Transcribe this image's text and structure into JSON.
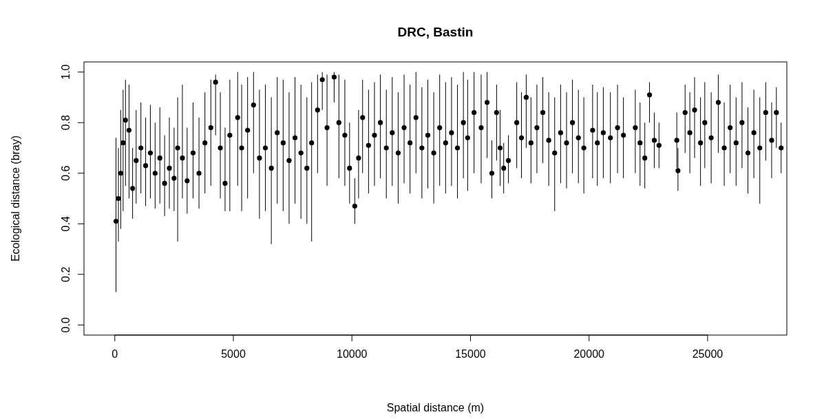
{
  "chart_data": {
    "type": "scatter",
    "title": "DRC, Bastin",
    "xlabel": "Spatial distance (m)",
    "ylabel": "Ecological distance (bray)",
    "xlim": [
      -1300,
      28340
    ],
    "ylim": [
      -0.04,
      1.04
    ],
    "xticks": [
      0,
      5000,
      10000,
      15000,
      20000,
      25000
    ],
    "yticks": [
      {
        "value": 0,
        "label": "0.0"
      },
      {
        "value": 0.2,
        "label": "0.2"
      },
      {
        "value": 0.4,
        "label": "0.4"
      },
      {
        "value": 0.6,
        "label": "0.6"
      },
      {
        "value": 0.8,
        "label": "0.8"
      },
      {
        "value": 1,
        "label": "1.0"
      }
    ],
    "grid": false,
    "marker": "circle",
    "series": [
      {
        "color": "#000000",
        "x": [
          50,
          150,
          250,
          350,
          450,
          600,
          750,
          900,
          1100,
          1300,
          1500,
          1700,
          1900,
          2100,
          2300,
          2500,
          2650,
          2850,
          3050,
          3300,
          3550,
          3800,
          4050,
          4250,
          4450,
          4650,
          4850,
          5180,
          5350,
          5600,
          5850,
          6100,
          6350,
          6600,
          6850,
          7100,
          7350,
          7600,
          7850,
          8100,
          8300,
          8550,
          8750,
          8950,
          9250,
          9450,
          9700,
          9900,
          10120,
          10280,
          10450,
          10700,
          10950,
          11200,
          11450,
          11700,
          11950,
          12200,
          12450,
          12700,
          12950,
          13200,
          13450,
          13700,
          13950,
          14200,
          14450,
          14700,
          14880,
          15150,
          15450,
          15700,
          15900,
          16100,
          16250,
          16400,
          16600,
          16950,
          17150,
          17350,
          17550,
          17800,
          18050,
          18300,
          18550,
          18800,
          19050,
          19300,
          19550,
          19780,
          20150,
          20350,
          20600,
          20900,
          21200,
          21450,
          21950,
          22150,
          22350,
          22550,
          22750,
          22950,
          23700,
          23750,
          24050,
          24250,
          24450,
          24700,
          24880,
          25150,
          25450,
          25700,
          25950,
          26200,
          26450,
          26700,
          26950,
          27200,
          27450,
          27700,
          27900,
          28100
        ],
        "values": [
          0.41,
          0.5,
          0.6,
          0.72,
          0.81,
          0.77,
          0.54,
          0.65,
          0.7,
          0.63,
          0.68,
          0.6,
          0.66,
          0.56,
          0.62,
          0.58,
          0.7,
          0.66,
          0.57,
          0.68,
          0.6,
          0.72,
          0.78,
          0.96,
          0.7,
          0.56,
          0.75,
          0.82,
          0.7,
          0.77,
          0.87,
          0.66,
          0.7,
          0.62,
          0.76,
          0.72,
          0.65,
          0.74,
          0.68,
          0.62,
          0.72,
          0.85,
          0.97,
          0.78,
          0.98,
          0.8,
          0.75,
          0.62,
          0.47,
          0.66,
          0.82,
          0.71,
          0.75,
          0.8,
          0.7,
          0.76,
          0.68,
          0.78,
          0.72,
          0.82,
          0.7,
          0.75,
          0.68,
          0.78,
          0.72,
          0.76,
          0.7,
          0.8,
          0.74,
          0.84,
          0.78,
          0.88,
          0.6,
          0.84,
          0.7,
          0.62,
          0.65,
          0.8,
          0.74,
          0.9,
          0.72,
          0.78,
          0.84,
          0.73,
          0.68,
          0.76,
          0.72,
          0.8,
          0.74,
          0.7,
          0.77,
          0.72,
          0.76,
          0.74,
          0.78,
          0.75,
          0.78,
          0.72,
          0.66,
          0.91,
          0.73,
          0.71,
          0.73,
          0.61,
          0.84,
          0.76,
          0.85,
          0.72,
          0.8,
          0.74,
          0.88,
          0.7,
          0.78,
          0.72,
          0.8,
          0.68,
          0.76,
          0.7,
          0.84,
          0.73,
          0.84,
          0.7
        ],
        "errors": [
          [
            0.13,
            0.74
          ],
          [
            0.33,
            0.7
          ],
          [
            0.38,
            0.85
          ],
          [
            0.45,
            0.93
          ],
          [
            0.55,
            0.97
          ],
          [
            0.5,
            0.95
          ],
          [
            0.42,
            0.7
          ],
          [
            0.48,
            0.85
          ],
          [
            0.52,
            0.88
          ],
          [
            0.47,
            0.82
          ],
          [
            0.5,
            0.87
          ],
          [
            0.46,
            0.8
          ],
          [
            0.48,
            0.86
          ],
          [
            0.43,
            0.75
          ],
          [
            0.46,
            0.82
          ],
          [
            0.45,
            0.78
          ],
          [
            0.33,
            0.9
          ],
          [
            0.5,
            0.95
          ],
          [
            0.44,
            0.78
          ],
          [
            0.5,
            0.88
          ],
          [
            0.46,
            0.82
          ],
          [
            0.52,
            0.92
          ],
          [
            0.55,
            0.97
          ],
          [
            0.75,
            0.99
          ],
          [
            0.5,
            0.92
          ],
          [
            0.45,
            0.78
          ],
          [
            0.45,
            0.97
          ],
          [
            0.55,
            1
          ],
          [
            0.45,
            0.95
          ],
          [
            0.5,
            0.98
          ],
          [
            0.6,
            1
          ],
          [
            0.42,
            0.93
          ],
          [
            0.45,
            0.95
          ],
          [
            0.32,
            0.9
          ],
          [
            0.48,
            0.98
          ],
          [
            0.45,
            0.97
          ],
          [
            0.4,
            0.92
          ],
          [
            0.48,
            0.98
          ],
          [
            0.42,
            0.95
          ],
          [
            0.4,
            0.9
          ],
          [
            0.33,
            0.96
          ],
          [
            0.6,
            0.99
          ],
          [
            0.85,
            1
          ],
          [
            0.55,
            0.99
          ],
          [
            0.88,
            1
          ],
          [
            0.58,
            0.99
          ],
          [
            0.55,
            0.97
          ],
          [
            0.48,
            0.8
          ],
          [
            0.4,
            0.58
          ],
          [
            0.5,
            0.85
          ],
          [
            0.6,
            0.97
          ],
          [
            0.52,
            0.93
          ],
          [
            0.55,
            0.96
          ],
          [
            0.58,
            0.99
          ],
          [
            0.5,
            0.93
          ],
          [
            0.55,
            0.98
          ],
          [
            0.48,
            0.92
          ],
          [
            0.56,
            0.99
          ],
          [
            0.52,
            0.95
          ],
          [
            0.6,
            1
          ],
          [
            0.5,
            0.94
          ],
          [
            0.54,
            0.97
          ],
          [
            0.48,
            0.92
          ],
          [
            0.55,
            0.99
          ],
          [
            0.52,
            0.96
          ],
          [
            0.55,
            0.98
          ],
          [
            0.5,
            0.95
          ],
          [
            0.58,
            1
          ],
          [
            0.53,
            0.97
          ],
          [
            0.6,
            1
          ],
          [
            0.56,
            0.99
          ],
          [
            0.66,
            1
          ],
          [
            0.5,
            0.73
          ],
          [
            0.65,
            0.95
          ],
          [
            0.55,
            0.85
          ],
          [
            0.52,
            0.72
          ],
          [
            0.56,
            0.75
          ],
          [
            0.62,
            0.96
          ],
          [
            0.58,
            0.92
          ],
          [
            0.7,
            0.99
          ],
          [
            0.56,
            0.9
          ],
          [
            0.6,
            0.95
          ],
          [
            0.64,
            0.98
          ],
          [
            0.55,
            0.92
          ],
          [
            0.45,
            0.9
          ],
          [
            0.56,
            0.95
          ],
          [
            0.54,
            0.92
          ],
          [
            0.6,
            0.97
          ],
          [
            0.56,
            0.93
          ],
          [
            0.52,
            0.9
          ],
          [
            0.58,
            0.95
          ],
          [
            0.55,
            0.92
          ],
          [
            0.58,
            0.94
          ],
          [
            0.56,
            0.92
          ],
          [
            0.6,
            0.95
          ],
          [
            0.58,
            0.9
          ],
          [
            0.6,
            0.93
          ],
          [
            0.55,
            0.88
          ],
          [
            0.54,
            0.8
          ],
          [
            0.8,
            0.96
          ],
          [
            0.62,
            0.84
          ],
          [
            0.62,
            0.8
          ],
          [
            0.62,
            0.84
          ],
          [
            0.53,
            0.7
          ],
          [
            0.68,
            0.95
          ],
          [
            0.6,
            0.92
          ],
          [
            0.66,
            0.98
          ],
          [
            0.55,
            0.9
          ],
          [
            0.62,
            0.96
          ],
          [
            0.56,
            0.92
          ],
          [
            0.68,
            0.99
          ],
          [
            0.55,
            0.88
          ],
          [
            0.6,
            0.95
          ],
          [
            0.55,
            0.9
          ],
          [
            0.62,
            0.96
          ],
          [
            0.52,
            0.86
          ],
          [
            0.58,
            0.93
          ],
          [
            0.48,
            0.9
          ],
          [
            0.65,
            0.96
          ],
          [
            0.58,
            0.88
          ],
          [
            0.7,
            0.94
          ],
          [
            0.6,
            0.8
          ]
        ]
      }
    ]
  }
}
